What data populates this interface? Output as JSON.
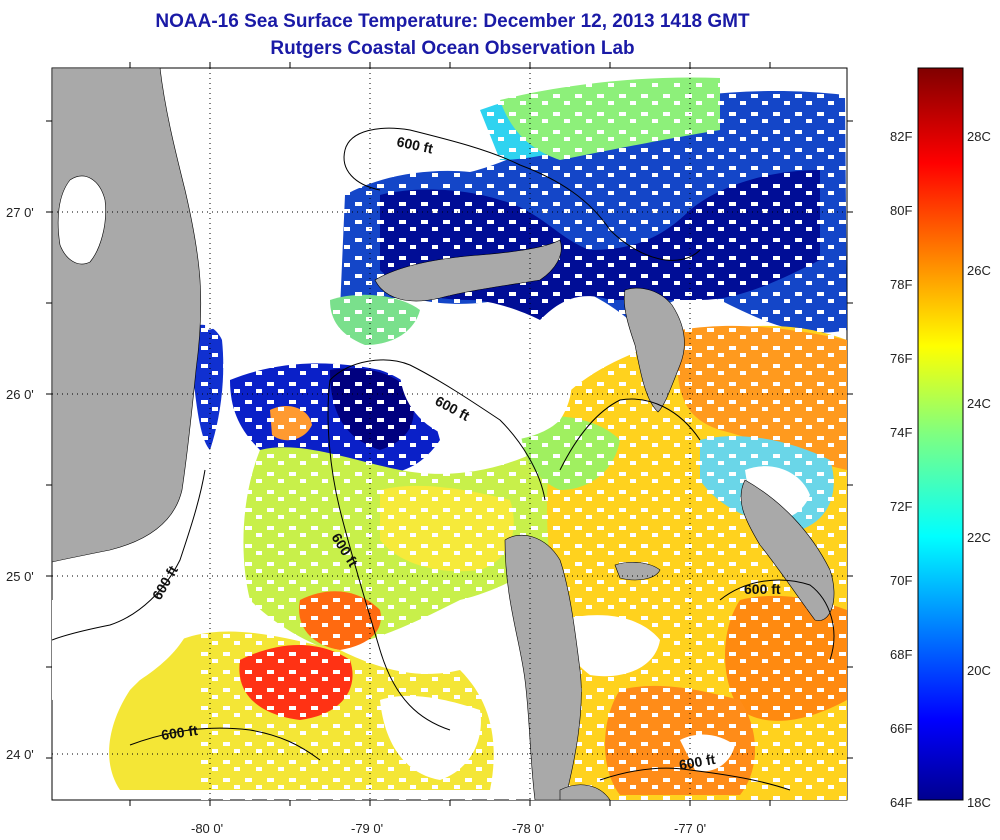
{
  "title_line1": "NOAA-16 Sea Surface Temperature:  December 12, 2013 1418 GMT",
  "title_line2": "Rutgers Coastal Ocean Observation Lab",
  "map": {
    "longitude_ticks": [
      "-80 0'",
      "-79 0'",
      "-78 0'",
      "-77 0'"
    ],
    "latitude_ticks": [
      "27 0'",
      "26 0'",
      "25 0'",
      "24 0'"
    ],
    "contour_labels": [
      "600 ft",
      "600 ft",
      "600 ft",
      "600 ft",
      "600 ft",
      "600 ft"
    ]
  },
  "colorbar": {
    "fahrenheit_labels": [
      "82F",
      "80F",
      "78F",
      "76F",
      "74F",
      "72F",
      "70F",
      "68F",
      "66F",
      "64F"
    ],
    "celsius_labels": [
      "28C",
      "26C",
      "24C",
      "22C",
      "20C",
      "18C"
    ]
  },
  "colors": {
    "land": "#a9a9a9",
    "title": "#1a1aa6"
  }
}
